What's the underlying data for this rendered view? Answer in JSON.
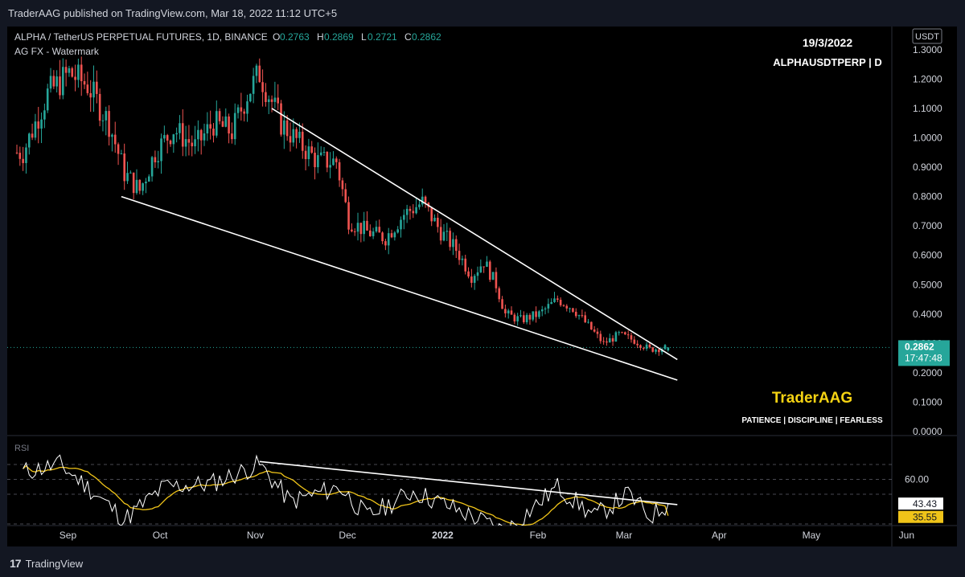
{
  "header": {
    "published": "TraderAAG published on TradingView.com, Mar 18, 2022 11:12 UTC+5"
  },
  "legend": {
    "symbol": "ALPHA / TetherUS PERPETUAL FUTURES, 1D, BINANCE",
    "o_label": "O",
    "o_value": "0.2763",
    "h_label": "H",
    "h_value": "0.2869",
    "l_label": "L",
    "l_value": "0.2721",
    "c_label": "C",
    "c_value": "0.2862",
    "watermark_label": "AG FX - Watermark"
  },
  "info": {
    "date": "19/3/2022",
    "ticker": "ALPHAUSDTPERP  |  D"
  },
  "brand": {
    "name": "TraderAAG",
    "motto": "PATIENCE  |  DISCIPLINE  |  FEARLESS",
    "name_color": "#f5d313"
  },
  "price_axis": {
    "unit": "USDT",
    "ticks": [
      "1.3000",
      "1.2000",
      "1.1000",
      "1.0000",
      "0.9000",
      "0.8000",
      "0.7000",
      "0.6000",
      "0.5000",
      "0.4000",
      "0.3000",
      "0.2000",
      "0.1000",
      "0.0000"
    ],
    "last_price": "0.2862",
    "countdown": "17:47:48",
    "last_price_color": "#26a69a"
  },
  "rsi_pane": {
    "label": "RSI",
    "level_label": "60.00",
    "rsi_value": "43.43",
    "ma_value": "35.55",
    "ma_color": "#f0c419"
  },
  "time_axis": {
    "labels": [
      "Sep",
      "Oct",
      "Nov",
      "Dec",
      "2022",
      "Feb",
      "Mar",
      "Apr",
      "May",
      "Jun"
    ]
  },
  "footer": {
    "brand": "TradingView",
    "logo": "17"
  },
  "colors": {
    "up": "#26a69a",
    "down": "#ef5350",
    "line": "#ffffff"
  },
  "chart_data": [
    {
      "type": "candlestick",
      "title": "ALPHA / TetherUS PERPETUAL FUTURES, 1D, BINANCE",
      "ylabel": "USDT",
      "ylim": [
        0.0,
        1.3
      ],
      "x_range": [
        "2021-08-18",
        "2022-03-18"
      ],
      "ohlc_last": {
        "open": 0.2763,
        "high": 0.2869,
        "low": 0.2721,
        "close": 0.2862
      },
      "trendlines": [
        {
          "name": "upper",
          "from": [
            "2021-11-09",
            1.1
          ],
          "to": [
            "2022-03-21",
            0.245
          ]
        },
        {
          "name": "lower",
          "from": [
            "2021-09-21",
            0.8
          ],
          "to": [
            "2022-03-21",
            0.175
          ]
        }
      ],
      "close_approx": [
        {
          "date": "2021-08-20",
          "close": 0.95
        },
        {
          "date": "2021-08-28",
          "close": 1.15
        },
        {
          "date": "2021-09-04",
          "close": 1.22
        },
        {
          "date": "2021-09-10",
          "close": 1.18
        },
        {
          "date": "2021-09-17",
          "close": 1.05
        },
        {
          "date": "2021-09-22",
          "close": 0.88
        },
        {
          "date": "2021-09-27",
          "close": 0.82
        },
        {
          "date": "2021-10-02",
          "close": 0.95
        },
        {
          "date": "2021-10-08",
          "close": 1.03
        },
        {
          "date": "2021-10-15",
          "close": 0.97
        },
        {
          "date": "2021-10-21",
          "close": 1.05
        },
        {
          "date": "2021-10-27",
          "close": 1.02
        },
        {
          "date": "2021-11-01",
          "close": 1.15
        },
        {
          "date": "2021-11-05",
          "close": 1.22
        },
        {
          "date": "2021-11-12",
          "close": 1.05
        },
        {
          "date": "2021-11-18",
          "close": 0.98
        },
        {
          "date": "2021-11-24",
          "close": 0.92
        },
        {
          "date": "2021-11-30",
          "close": 0.92
        },
        {
          "date": "2021-12-04",
          "close": 0.72
        },
        {
          "date": "2021-12-10",
          "close": 0.68
        },
        {
          "date": "2021-12-16",
          "close": 0.66
        },
        {
          "date": "2021-12-22",
          "close": 0.74
        },
        {
          "date": "2021-12-28",
          "close": 0.78
        },
        {
          "date": "2022-01-03",
          "close": 0.68
        },
        {
          "date": "2022-01-08",
          "close": 0.62
        },
        {
          "date": "2022-01-13",
          "close": 0.53
        },
        {
          "date": "2022-01-17",
          "close": 0.58
        },
        {
          "date": "2022-01-21",
          "close": 0.5
        },
        {
          "date": "2022-01-24",
          "close": 0.4
        },
        {
          "date": "2022-01-29",
          "close": 0.38
        },
        {
          "date": "2022-02-04",
          "close": 0.4
        },
        {
          "date": "2022-02-10",
          "close": 0.45
        },
        {
          "date": "2022-02-15",
          "close": 0.42
        },
        {
          "date": "2022-02-20",
          "close": 0.36
        },
        {
          "date": "2022-02-25",
          "close": 0.3
        },
        {
          "date": "2022-03-02",
          "close": 0.33
        },
        {
          "date": "2022-03-07",
          "close": 0.31
        },
        {
          "date": "2022-03-12",
          "close": 0.28
        },
        {
          "date": "2022-03-18",
          "close": 0.2862
        }
      ]
    },
    {
      "type": "line",
      "title": "RSI",
      "ylim": [
        20,
        80
      ],
      "series": [
        {
          "name": "RSI",
          "last": 43.43
        },
        {
          "name": "RSI MA",
          "last": 35.55
        }
      ],
      "levels": [
        70,
        60,
        50,
        30
      ],
      "trendline": {
        "from": [
          "2021-11-05",
          72
        ],
        "to": [
          "2022-03-21",
          43
        ]
      },
      "rsi_approx": [
        {
          "date": "2021-08-20",
          "value": 65
        },
        {
          "date": "2021-09-01",
          "value": 70
        },
        {
          "date": "2021-09-10",
          "value": 55
        },
        {
          "date": "2021-09-22",
          "value": 33
        },
        {
          "date": "2021-10-05",
          "value": 55
        },
        {
          "date": "2021-10-20",
          "value": 57
        },
        {
          "date": "2021-11-05",
          "value": 70
        },
        {
          "date": "2021-11-15",
          "value": 45
        },
        {
          "date": "2021-12-01",
          "value": 55
        },
        {
          "date": "2021-12-10",
          "value": 35
        },
        {
          "date": "2021-12-25",
          "value": 52
        },
        {
          "date": "2022-01-10",
          "value": 38
        },
        {
          "date": "2022-01-24",
          "value": 25
        },
        {
          "date": "2022-02-10",
          "value": 55
        },
        {
          "date": "2022-02-22",
          "value": 35
        },
        {
          "date": "2022-03-05",
          "value": 50
        },
        {
          "date": "2022-03-12",
          "value": 35
        },
        {
          "date": "2022-03-18",
          "value": 43.43
        }
      ]
    }
  ]
}
